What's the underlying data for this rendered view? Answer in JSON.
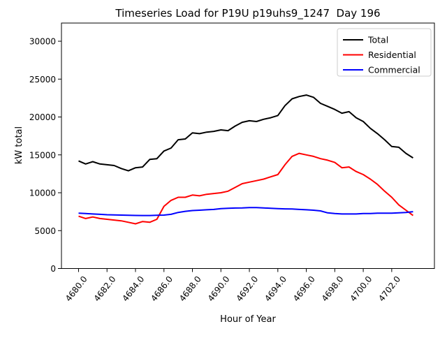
{
  "chart_data": {
    "type": "line",
    "title": "Timeseries Load for P19U p19uhs9_1247  Day 196",
    "xlabel": "Hour of Year",
    "ylabel": "kW total",
    "grid": false,
    "legend_position": "upper right",
    "xlim": [
      4678.8,
      4705.0
    ],
    "ylim": [
      0,
      32400
    ],
    "x_ticks": [
      4680,
      4682,
      4684,
      4686,
      4688,
      4690,
      4692,
      4694,
      4696,
      4698,
      4700,
      4702
    ],
    "x_tick_labels": [
      "4680.0",
      "4682.0",
      "4684.0",
      "4686.0",
      "4688.0",
      "4690.0",
      "4692.0",
      "4694.0",
      "4696.0",
      "4698.0",
      "4700.0",
      "4702.0"
    ],
    "x_tick_rotation": -52,
    "y_ticks": [
      0,
      5000,
      10000,
      15000,
      20000,
      25000,
      30000
    ],
    "y_tick_labels": [
      "0",
      "5000",
      "10000",
      "15000",
      "20000",
      "25000",
      "30000"
    ],
    "x": [
      4680.0,
      4680.5,
      4681.0,
      4681.5,
      4682.0,
      4682.5,
      4683.0,
      4683.5,
      4684.0,
      4684.5,
      4685.0,
      4685.5,
      4686.0,
      4686.5,
      4687.0,
      4687.5,
      4688.0,
      4688.5,
      4689.0,
      4689.5,
      4690.0,
      4690.5,
      4691.0,
      4691.5,
      4692.0,
      4692.5,
      4693.0,
      4693.5,
      4694.0,
      4694.5,
      4695.0,
      4695.5,
      4696.0,
      4696.5,
      4697.0,
      4697.5,
      4698.0,
      4698.5,
      4699.0,
      4699.5,
      4700.0,
      4700.5,
      4701.0,
      4701.5,
      4702.0,
      4702.5,
      4703.0,
      4703.5
    ],
    "series": [
      {
        "name": "Total",
        "color": "#000000",
        "values": [
          14200,
          13800,
          14100,
          13800,
          13700,
          13600,
          13200,
          12900,
          13300,
          13400,
          14400,
          14500,
          15500,
          15900,
          17000,
          17100,
          17900,
          17800,
          18000,
          18100,
          18300,
          18200,
          18800,
          19300,
          19500,
          19400,
          19700,
          19900,
          20200,
          21500,
          22400,
          22700,
          22900,
          22600,
          21800,
          21400,
          21000,
          20500,
          20700,
          19900,
          19400,
          18500,
          17800,
          17000,
          16100,
          16000,
          15200,
          14600
        ]
      },
      {
        "name": "Residential",
        "color": "#ff0000",
        "values": [
          6900,
          6600,
          6800,
          6600,
          6500,
          6400,
          6300,
          6100,
          5900,
          6200,
          6100,
          6500,
          8200,
          9000,
          9400,
          9400,
          9700,
          9600,
          9800,
          9900,
          10000,
          10200,
          10700,
          11200,
          11400,
          11600,
          11800,
          12100,
          12400,
          13700,
          14800,
          15200,
          15000,
          14800,
          14500,
          14300,
          14000,
          13300,
          13400,
          12800,
          12400,
          11800,
          11100,
          10200,
          9400,
          8400,
          7700,
          7000
        ]
      },
      {
        "name": "Commercial",
        "color": "#0000ff",
        "values": [
          7300,
          7260,
          7200,
          7150,
          7100,
          7080,
          7050,
          7030,
          7010,
          7000,
          7000,
          7020,
          7050,
          7150,
          7400,
          7550,
          7650,
          7700,
          7750,
          7800,
          7900,
          7950,
          7980,
          8000,
          8050,
          8050,
          8000,
          7950,
          7900,
          7870,
          7850,
          7800,
          7750,
          7700,
          7600,
          7350,
          7250,
          7200,
          7200,
          7200,
          7250,
          7250,
          7300,
          7300,
          7300,
          7350,
          7400,
          7500
        ]
      }
    ]
  }
}
